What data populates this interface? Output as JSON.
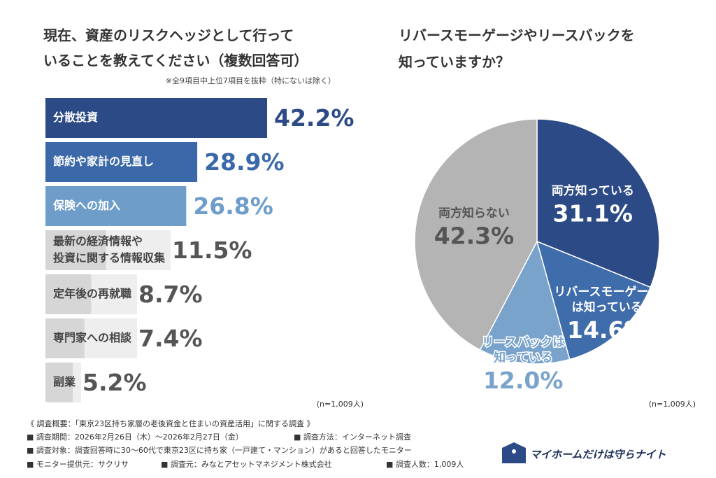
{
  "chart_data": [
    {
      "type": "bar",
      "orientation": "horizontal",
      "title": [
        "現在、資産のリスクヘッジとして行って",
        "いることを教えてください（複数回答可）"
      ],
      "note": "※全9項目中上位7項目を抜粋（特にないは除く）",
      "categories": [
        [
          "分散投資"
        ],
        [
          "節約や家計の見直し"
        ],
        [
          "保険への加入"
        ],
        [
          "最新の経済情報や",
          "投資に関する情報収集"
        ],
        [
          "定年後の再就職"
        ],
        [
          "専門家への相談"
        ],
        [
          "副業"
        ]
      ],
      "values": [
        42.2,
        28.9,
        26.8,
        11.5,
        8.7,
        7.4,
        5.2
      ],
      "value_labels": [
        "42.2%",
        "28.9%",
        "26.8%",
        "11.5%",
        "8.7%",
        "7.4%",
        "5.2%"
      ],
      "colors": [
        "#2b4a86",
        "#3a68a8",
        "#6e9dca",
        "#d6d6d6",
        "#d6d6d6",
        "#d6d6d6",
        "#d6d6d6"
      ],
      "value_label_colors": [
        "#2b4a86",
        "#3a68a8",
        "#6e9dca",
        "#555555",
        "#555555",
        "#555555",
        "#555555"
      ],
      "category_colors": [
        "#ffffff",
        "#ffffff",
        "#ffffff",
        "#444444",
        "#444444",
        "#444444",
        "#444444"
      ],
      "sample_note": "(n=1,009人)"
    },
    {
      "type": "pie",
      "title": [
        "リバースモーゲージやリースバックを",
        "知っていますか？"
      ],
      "categories": [
        [
          "両方知っている"
        ],
        [
          "リバースモーゲージ",
          "は知っている"
        ],
        [
          "リースバックは",
          "知っている"
        ],
        [
          "両方知らない"
        ]
      ],
      "values": [
        31.1,
        14.6,
        12.0,
        42.3
      ],
      "value_labels": [
        "31.1%",
        "14.6%",
        "12.0%",
        "42.3%"
      ],
      "colors": [
        "#2b4a86",
        "#3f6caa",
        "#7aa3cb",
        "#b4b4b4"
      ],
      "label_colors": [
        "#ffffff",
        "#ffffff",
        "#7aa3cb",
        "#555555"
      ],
      "sample_note": "(n=1,009人)"
    }
  ],
  "footer": {
    "heading": "《 調査概要：「東京23区持ち家層の老後資金と住まいの資産活用」に関する調査 》",
    "period": "■ 調査期間：2026年2月26日（木）～2026年2月27日（金）",
    "method": "■ 調査方法：インターネット調査",
    "target": "■ 調査対象：調査回答時に30～60代で東京23区に持ち家（一戸建て・マンション）があると回答したモニター",
    "provider": "■ モニター提供元：サクリサ",
    "source": "■ 調査元：みなとアセットマネジメント株式会社",
    "count": "■ 調査人数：1,009人"
  },
  "logo": "マイホームだけは守らナイト"
}
